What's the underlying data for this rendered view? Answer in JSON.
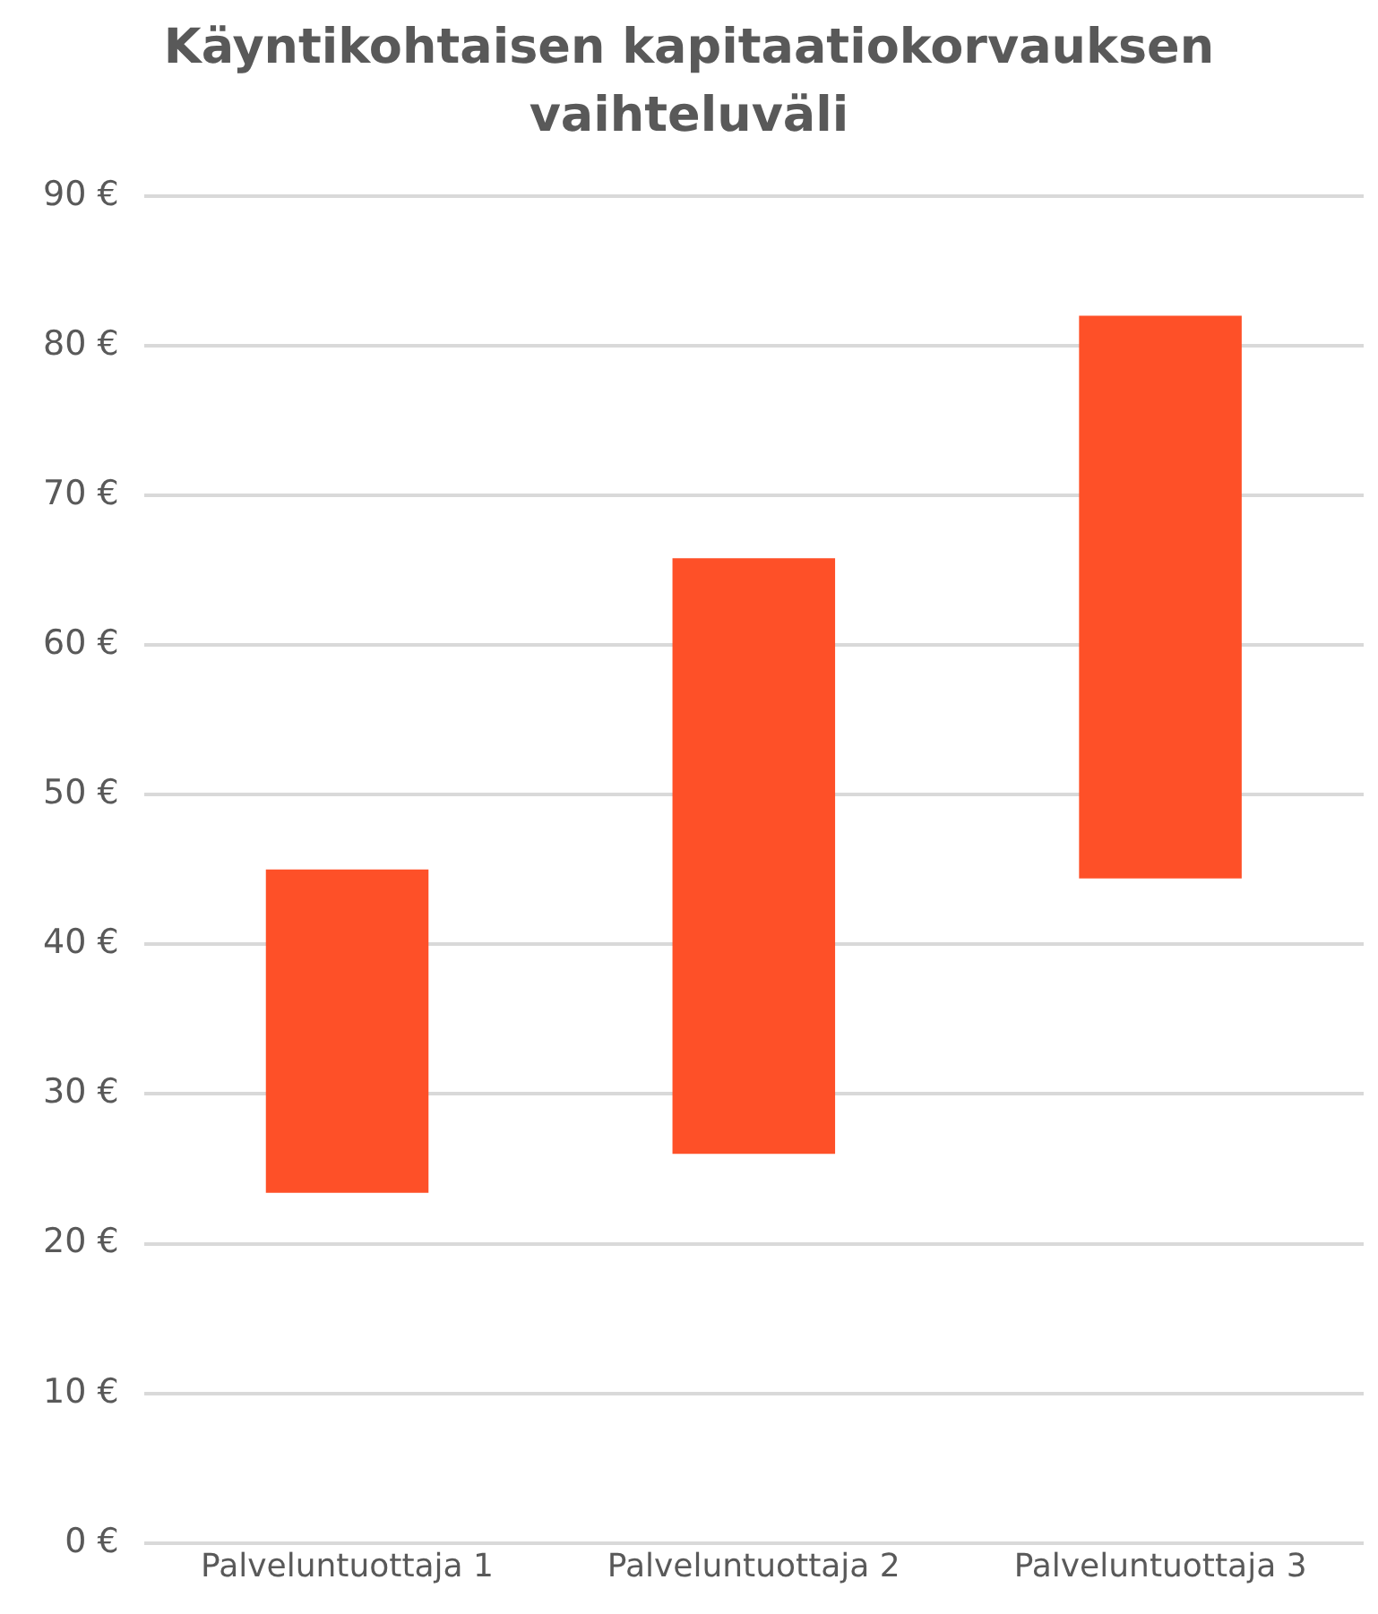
{
  "chart_data": {
    "type": "bar",
    "title": "Käyntikohtaisen kapitaatiokorvauksen vaihteluväli",
    "categories": [
      "Palveluntuottaja 1",
      "Palveluntuottaja 2",
      "Palveluntuottaja 3"
    ],
    "base": [
      23.4,
      26.0,
      44.4
    ],
    "values": [
      21.6,
      39.8,
      37.6
    ],
    "color": "#fe5028",
    "ylim": [
      0,
      90
    ],
    "yticks": [
      {
        "value": 0,
        "label": "0 €"
      },
      {
        "value": 10,
        "label": "10 €"
      },
      {
        "value": 20,
        "label": "20 €"
      },
      {
        "value": 30,
        "label": "30 €"
      },
      {
        "value": 40,
        "label": "40 €"
      },
      {
        "value": 50,
        "label": "50 €"
      },
      {
        "value": 60,
        "label": "60 €"
      },
      {
        "value": 70,
        "label": "70 €"
      },
      {
        "value": 80,
        "label": "80 €"
      },
      {
        "value": 90,
        "label": "90 €"
      }
    ],
    "grid": "y",
    "legend": false
  }
}
